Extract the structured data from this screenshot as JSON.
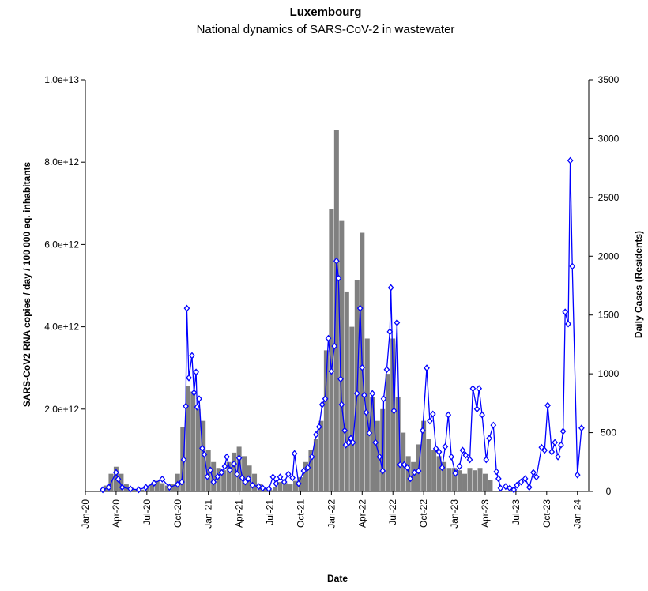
{
  "chart_data": {
    "type": "combo",
    "title": "Luxembourg",
    "subtitle": "National dynamics of SARS-CoV-2 in wastewater",
    "x_label": "Date",
    "y_label": "SARS-CoV2 RNA copies / day  / 100 000 eq. inhabitants",
    "y2_label": "Daily Cases (Residents)",
    "xlim": [
      0,
      49.1
    ],
    "xticks": [
      {
        "value": 0,
        "label": "Jan-20"
      },
      {
        "value": 3,
        "label": "Apr-20"
      },
      {
        "value": 6,
        "label": "Jul-20"
      },
      {
        "value": 9,
        "label": "Oct-20"
      },
      {
        "value": 12,
        "label": "Jan-21"
      },
      {
        "value": 15,
        "label": "Apr-21"
      },
      {
        "value": 18,
        "label": "Jul-21"
      },
      {
        "value": 21,
        "label": "Oct-21"
      },
      {
        "value": 24,
        "label": "Jan-22"
      },
      {
        "value": 27,
        "label": "Apr-22"
      },
      {
        "value": 30,
        "label": "Jul-22"
      },
      {
        "value": 33,
        "label": "Oct-22"
      },
      {
        "value": 36,
        "label": "Jan-23"
      },
      {
        "value": 39,
        "label": "Apr-23"
      },
      {
        "value": 42,
        "label": "Jul-23"
      },
      {
        "value": 45,
        "label": "Oct-23"
      },
      {
        "value": 48,
        "label": "Jan-24"
      }
    ],
    "ylim": [
      0,
      10000000000000.0
    ],
    "yticks": [
      {
        "value": 2000000000000.0,
        "label": "2.0e+12"
      },
      {
        "value": 4000000000000.0,
        "label": "4.0e+12"
      },
      {
        "value": 6000000000000.0,
        "label": "6.0e+12"
      },
      {
        "value": 8000000000000.0,
        "label": "8.0e+12"
      },
      {
        "value": 10000000000000.0,
        "label": "1.0e+13"
      }
    ],
    "y2lim": [
      0,
      3500
    ],
    "y2ticks": [
      0,
      500,
      1000,
      1500,
      2000,
      2500,
      3000,
      3500
    ],
    "series": [
      {
        "type": "bar",
        "axis": "y2",
        "color": "#808080",
        "x": [
          2.0,
          2.5,
          3.0,
          3.5,
          4.0,
          4.5,
          5.0,
          5.5,
          6.0,
          6.5,
          7.0,
          7.5,
          8.0,
          8.5,
          9.0,
          9.5,
          10.0,
          10.5,
          11.0,
          11.5,
          12.0,
          12.5,
          13.0,
          13.5,
          14.0,
          14.5,
          15.0,
          15.5,
          16.0,
          16.5,
          17.0,
          17.5,
          18.0,
          18.5,
          19.0,
          19.5,
          20.0,
          20.5,
          21.0,
          21.5,
          22.0,
          22.5,
          23.0,
          23.5,
          24.0,
          24.5,
          25.0,
          25.5,
          26.0,
          26.5,
          27.0,
          27.5,
          28.0,
          28.5,
          29.0,
          29.5,
          30.0,
          30.5,
          31.0,
          31.5,
          32.0,
          32.5,
          33.0,
          33.5,
          34.0,
          34.5,
          35.0,
          35.5,
          36.0,
          36.5,
          37.0,
          37.5,
          38.0,
          38.5,
          39.0,
          39.5
        ],
        "values": [
          50,
          150,
          210,
          150,
          60,
          30,
          15,
          15,
          30,
          60,
          90,
          70,
          50,
          60,
          150,
          550,
          900,
          850,
          700,
          600,
          350,
          250,
          200,
          180,
          250,
          330,
          380,
          300,
          220,
          150,
          60,
          20,
          15,
          40,
          80,
          70,
          60,
          90,
          120,
          250,
          350,
          450,
          600,
          1200,
          2400,
          3070,
          2300,
          1700,
          1400,
          1800,
          2200,
          1300,
          800,
          600,
          700,
          1000,
          1300,
          800,
          500,
          300,
          250,
          400,
          600,
          450,
          350,
          300,
          250,
          200,
          200,
          180,
          150,
          200,
          180,
          200,
          150,
          100
        ]
      },
      {
        "type": "line",
        "color": "#0000ff",
        "marker": "diamond",
        "x": [
          1.7,
          2.3,
          3.0,
          3.2,
          3.6,
          4.4,
          5.2,
          5.9,
          6.7,
          7.5,
          8.2,
          9.0,
          9.4,
          9.6,
          9.8,
          9.9,
          10.1,
          10.4,
          10.6,
          10.8,
          10.9,
          11.1,
          11.4,
          11.6,
          11.9,
          12.2,
          12.5,
          12.9,
          13.3,
          13.6,
          13.8,
          14.1,
          14.5,
          14.8,
          15.0,
          15.3,
          15.6,
          15.9,
          16.3,
          16.9,
          17.3,
          17.9,
          18.3,
          18.6,
          19.0,
          19.4,
          19.8,
          20.2,
          20.4,
          20.8,
          21.3,
          21.7,
          22.1,
          22.5,
          22.8,
          23.1,
          23.4,
          23.7,
          24.0,
          24.3,
          24.5,
          24.7,
          24.9,
          25.0,
          25.3,
          25.4,
          25.7,
          25.9,
          26.1,
          26.5,
          26.8,
          27.0,
          27.2,
          27.4,
          27.7,
          28.0,
          28.3,
          28.7,
          29.0,
          29.1,
          29.4,
          29.7,
          29.8,
          30.1,
          30.4,
          30.7,
          31.1,
          31.4,
          31.7,
          32.1,
          32.5,
          32.9,
          33.3,
          33.6,
          33.9,
          34.2,
          34.5,
          34.8,
          35.1,
          35.4,
          35.7,
          36.1,
          36.5,
          36.8,
          37.1,
          37.5,
          37.8,
          38.2,
          38.4,
          38.7,
          39.1,
          39.4,
          39.8,
          40.1,
          40.3,
          40.5,
          41.0,
          41.4,
          41.8,
          42.1,
          42.5,
          42.9,
          43.3,
          43.7,
          44.0,
          44.5,
          44.8,
          45.1,
          45.5,
          45.8,
          46.1,
          46.4,
          46.6,
          46.8,
          47.1,
          47.3,
          47.5,
          48.0,
          48.4
        ],
        "values": [
          40000000000.0,
          100000000000.0,
          460000000000.0,
          300000000000.0,
          100000000000.0,
          60000000000.0,
          40000000000.0,
          100000000000.0,
          200000000000.0,
          300000000000.0,
          100000000000.0,
          170000000000.0,
          230000000000.0,
          770000000000.0,
          2070000000000.0,
          4450000000000.0,
          2760000000000.0,
          3300000000000.0,
          2400000000000.0,
          2900000000000.0,
          2050000000000.0,
          2250000000000.0,
          1050000000000.0,
          900000000000.0,
          360000000000.0,
          520000000000.0,
          230000000000.0,
          360000000000.0,
          460000000000.0,
          610000000000.0,
          840000000000.0,
          520000000000.0,
          670000000000.0,
          420000000000.0,
          810000000000.0,
          330000000000.0,
          230000000000.0,
          310000000000.0,
          150000000000.0,
          120000000000.0,
          80000000000.0,
          60000000000.0,
          350000000000.0,
          190000000000.0,
          350000000000.0,
          230000000000.0,
          420000000000.0,
          330000000000.0,
          920000000000.0,
          190000000000.0,
          500000000000.0,
          580000000000.0,
          840000000000.0,
          1380000000000.0,
          1570000000000.0,
          2110000000000.0,
          2250000000000.0,
          3720000000000.0,
          2920000000000.0,
          3530000000000.0,
          5600000000000.0,
          5180000000000.0,
          2730000000000.0,
          2110000000000.0,
          1480000000000.0,
          1130000000000.0,
          1190000000000.0,
          1290000000000.0,
          1190000000000.0,
          2380000000000.0,
          4450000000000.0,
          3010000000000.0,
          2340000000000.0,
          1920000000000.0,
          1420000000000.0,
          2380000000000.0,
          1190000000000.0,
          840000000000.0,
          500000000000.0,
          2250000000000.0,
          2960000000000.0,
          3880000000000.0,
          4950000000000.0,
          1960000000000.0,
          4100000000000.0,
          650000000000.0,
          650000000000.0,
          580000000000.0,
          310000000000.0,
          460000000000.0,
          500000000000.0,
          1480000000000.0,
          3000000000000.0,
          1710000000000.0,
          1880000000000.0,
          1040000000000.0,
          960000000000.0,
          580000000000.0,
          1090000000000.0,
          1860000000000.0,
          840000000000.0,
          440000000000.0,
          610000000000.0,
          1000000000000.0,
          880000000000.0,
          770000000000.0,
          2500000000000.0,
          2000000000000.0,
          2500000000000.0,
          1860000000000.0,
          770000000000.0,
          1290000000000.0,
          1610000000000.0,
          480000000000.0,
          310000000000.0,
          80000000000.0,
          120000000000.0,
          80000000000.0,
          40000000000.0,
          150000000000.0,
          230000000000.0,
          310000000000.0,
          100000000000.0,
          460000000000.0,
          350000000000.0,
          1070000000000.0,
          1000000000000.0,
          2090000000000.0,
          960000000000.0,
          1190000000000.0,
          840000000000.0,
          1130000000000.0,
          1460000000000.0,
          4360000000000.0,
          4070000000000.0,
          8040000000000.0,
          5470000000000.0,
          400000000000.0,
          1540000000000.0
        ]
      }
    ]
  }
}
